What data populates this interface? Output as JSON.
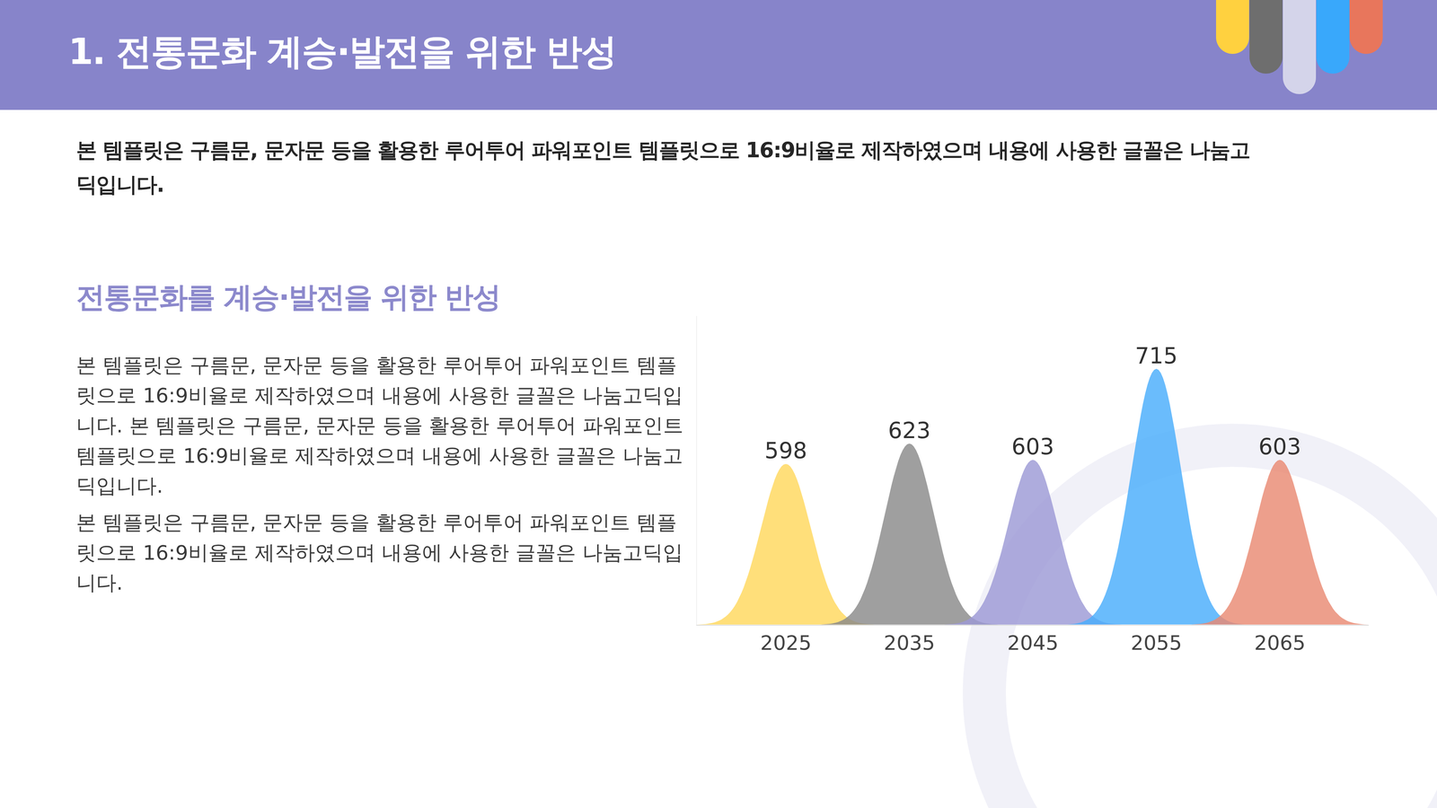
{
  "header": {
    "title": "1. 전통문화 계승·발전을 위한 반성"
  },
  "intro": "본 템플릿은 구름문, 문자문 등을 활용한 루어투어 파워포인트 템플릿으로 16:9비율로 제작하였으며 내용에 사용한 글꼴은 나눔고딕입니다.",
  "section": {
    "heading": "전통문화를 계승·발전을 위한 반성",
    "paragraphs": [
      "본 템플릿은 구름문, 문자문 등을 활용한 루어투어 파워포인트 템플릿으로 16:9비율로 제작하였으며 내용에 사용한 글꼴은 나눔고딕입니다. 본 템플릿은 구름문, 문자문 등을 활용한 루어투어 파워포인트 템플릿으로 16:9비율로 제작하였으며 내용에 사용한 글꼴은 나눔고딕입니다.",
      "본 템플릿은 구름문, 문자문 등을 활용한 루어투어 파워포인트 템플릿으로 16:9비율로 제작하였으며 내용에 사용한 글꼴은 나눔고딕입니다."
    ]
  },
  "chart_data": {
    "type": "area",
    "categories": [
      "2025",
      "2035",
      "2045",
      "2055",
      "2065"
    ],
    "values": [
      598,
      623,
      603,
      715,
      603
    ],
    "colors": [
      "#ffd85e",
      "#8a8a8a",
      "#9d9ad6",
      "#4aaefc",
      "#ea8a73"
    ],
    "ylim": [
      400,
      780
    ],
    "data_labels": true,
    "tick_labels": "x",
    "grid": false
  }
}
